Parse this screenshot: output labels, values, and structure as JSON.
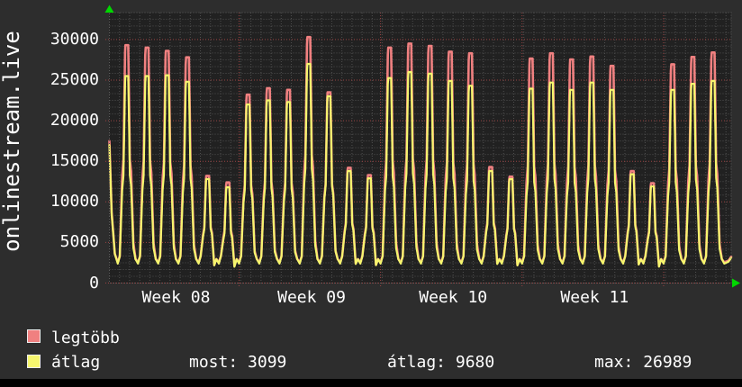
{
  "watermark": "onlinestream.live",
  "legend": {
    "items": [
      {
        "label": "legtöbb",
        "color": "#f08080"
      },
      {
        "label": "átlag",
        "color": "#f6f66e"
      }
    ],
    "stats": [
      {
        "label": "most:",
        "value": "3099"
      },
      {
        "label": "átlag:",
        "value": "9680"
      },
      {
        "label": "max:",
        "value": "26989"
      }
    ]
  },
  "chart_data": {
    "type": "line",
    "title": "",
    "xlabel": "",
    "ylabel": "",
    "ylim": [
      0,
      30000
    ],
    "y_ticks": [
      0,
      5000,
      10000,
      15000,
      20000,
      25000,
      30000
    ],
    "y_tick_labels": [
      "0",
      "5000",
      "10000",
      "15000",
      "20000",
      "25000",
      "30000"
    ],
    "x_tick_labels": [
      "Week 08",
      "Week 09",
      "Week 10",
      "Week 11"
    ],
    "grid": true,
    "legend_position": "bottom-left",
    "background": "#2d2d2d",
    "plot_background": "#212121",
    "grid_minor_color": "#4f4f4f",
    "grid_major_color": "#9a4343",
    "arrow_color": "#00d800",
    "days_shown": 30,
    "weekend_day_indices": [
      4,
      5,
      11,
      12,
      18,
      19,
      25,
      26
    ],
    "baseline_trough": 2400,
    "edge_values": {
      "left_start": 17000,
      "right_end": 3099
    },
    "series": [
      {
        "name": "legtöbb",
        "color": "#f08080",
        "daily_peak_values": [
          29300,
          29000,
          28600,
          27800,
          13200,
          12400,
          23200,
          24000,
          23800,
          30300,
          23500,
          14200,
          13300,
          29000,
          29500,
          29200,
          28500,
          28300,
          14300,
          13100,
          27650,
          28300,
          27550,
          27900,
          26750,
          13800,
          12300,
          26950,
          27850,
          28400
        ]
      },
      {
        "name": "átlag",
        "color": "#f6f66e",
        "daily_peak_values": [
          25500,
          25500,
          25600,
          24800,
          12800,
          11800,
          22000,
          22500,
          22300,
          27000,
          23000,
          13800,
          12900,
          25250,
          26000,
          25800,
          24900,
          24300,
          13800,
          12800,
          23950,
          24700,
          23800,
          24700,
          23800,
          13400,
          11900,
          23800,
          24550,
          24900
        ]
      }
    ],
    "stats": {
      "most": 3099,
      "átlag": 9680,
      "max": 26989
    }
  }
}
